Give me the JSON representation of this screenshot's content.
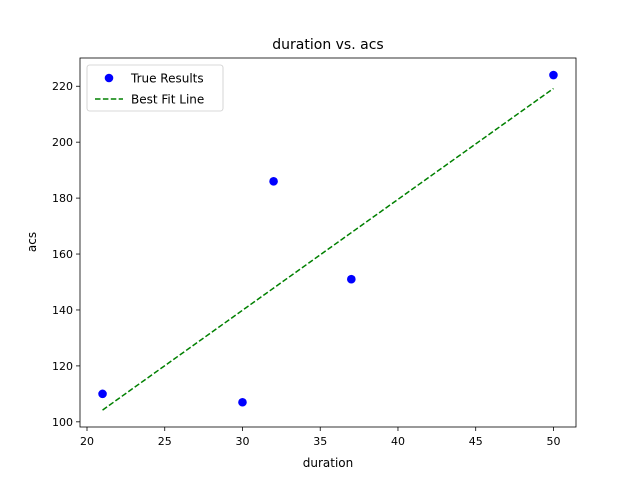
{
  "chart_data": {
    "type": "scatter",
    "title": "duration vs. acs",
    "xlabel": "duration",
    "ylabel": "acs",
    "xlim": [
      19.55,
      51.45
    ],
    "ylim": [
      98.15,
      230.1
    ],
    "x_ticks": [
      20,
      25,
      30,
      35,
      40,
      45,
      50
    ],
    "y_ticks": [
      100,
      120,
      140,
      160,
      180,
      200,
      220
    ],
    "grid": false,
    "legend_position": "upper-left",
    "series": [
      {
        "name": "True Results",
        "kind": "scatter",
        "color": "#0000ff",
        "x": [
          21,
          30,
          32,
          37,
          50
        ],
        "y": [
          110,
          107,
          186,
          151,
          224
        ]
      },
      {
        "name": "Best Fit Line",
        "kind": "line",
        "style": "dashed",
        "color": "#008000",
        "x": [
          21,
          50
        ],
        "y": [
          104.2,
          219.2
        ]
      }
    ]
  }
}
